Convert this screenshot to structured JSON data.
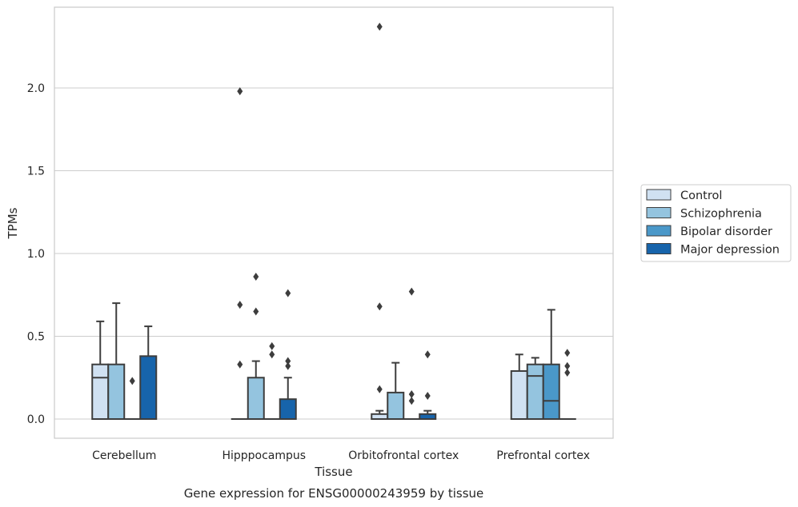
{
  "chart_data": {
    "type": "box",
    "title": "",
    "caption": "Gene expression for ENSG00000243959 by tissue",
    "xlabel": "Tissue",
    "ylabel": "TPMs",
    "ylim": [
      -0.115,
      2.48
    ],
    "yticks": [
      "0.0",
      "0.5",
      "1.0",
      "1.5",
      "2.0"
    ],
    "ytick_values": [
      0.0,
      0.5,
      1.0,
      1.5,
      2.0
    ],
    "grid": "horizontal",
    "legend_position": "right",
    "categories": [
      "Cerebellum",
      "Hipppocampus",
      "Orbitofrontal cortex",
      "Prefrontal cortex"
    ],
    "series": [
      {
        "name": "Control",
        "color": "#d0e1f2",
        "boxes": [
          {
            "q1": 0.0,
            "median": 0.25,
            "q3": 0.33,
            "whisker_low": 0.0,
            "whisker_high": 0.59,
            "outliers": []
          },
          {
            "q1": 0.0,
            "median": 0.0,
            "q3": 0.0,
            "whisker_low": 0.0,
            "whisker_high": 0.0,
            "outliers": [
              0.33,
              0.69,
              1.98
            ]
          },
          {
            "q1": 0.0,
            "median": 0.0,
            "q3": 0.03,
            "whisker_low": 0.0,
            "whisker_high": 0.05,
            "outliers": [
              0.18,
              0.68,
              2.37
            ]
          },
          {
            "q1": 0.0,
            "median": 0.0,
            "q3": 0.29,
            "whisker_low": 0.0,
            "whisker_high": 0.39,
            "outliers": []
          }
        ]
      },
      {
        "name": "Schizophrenia",
        "color": "#94c4df",
        "boxes": [
          {
            "q1": 0.0,
            "median": 0.0,
            "q3": 0.33,
            "whisker_low": 0.0,
            "whisker_high": 0.7,
            "outliers": []
          },
          {
            "q1": 0.0,
            "median": 0.0,
            "q3": 0.25,
            "whisker_low": 0.0,
            "whisker_high": 0.35,
            "outliers": [
              0.65,
              0.86
            ]
          },
          {
            "q1": 0.0,
            "median": 0.0,
            "q3": 0.16,
            "whisker_low": 0.0,
            "whisker_high": 0.34,
            "outliers": []
          },
          {
            "q1": 0.0,
            "median": 0.26,
            "q3": 0.33,
            "whisker_low": 0.0,
            "whisker_high": 0.37,
            "outliers": []
          }
        ]
      },
      {
        "name": "Bipolar disorder",
        "color": "#4a98c9",
        "boxes": [
          {
            "q1": 0.0,
            "median": 0.0,
            "q3": 0.0,
            "whisker_low": 0.0,
            "whisker_high": 0.0,
            "outliers": [
              0.23
            ]
          },
          {
            "q1": 0.0,
            "median": 0.0,
            "q3": 0.0,
            "whisker_low": 0.0,
            "whisker_high": 0.0,
            "outliers": [
              0.39,
              0.44
            ]
          },
          {
            "q1": 0.0,
            "median": 0.0,
            "q3": 0.0,
            "whisker_low": 0.0,
            "whisker_high": 0.0,
            "outliers": [
              0.11,
              0.15,
              0.77
            ]
          },
          {
            "q1": 0.0,
            "median": 0.11,
            "q3": 0.33,
            "whisker_low": 0.0,
            "whisker_high": 0.66,
            "outliers": []
          }
        ]
      },
      {
        "name": "Major depression",
        "color": "#1764ab",
        "boxes": [
          {
            "q1": 0.0,
            "median": 0.0,
            "q3": 0.38,
            "whisker_low": 0.0,
            "whisker_high": 0.56,
            "outliers": []
          },
          {
            "q1": 0.0,
            "median": 0.0,
            "q3": 0.12,
            "whisker_low": 0.0,
            "whisker_high": 0.25,
            "outliers": [
              0.32,
              0.35,
              0.76
            ]
          },
          {
            "q1": 0.0,
            "median": 0.0,
            "q3": 0.03,
            "whisker_low": 0.0,
            "whisker_high": 0.05,
            "outliers": [
              0.14,
              0.39
            ]
          },
          {
            "q1": 0.0,
            "median": 0.0,
            "q3": 0.0,
            "whisker_low": 0.0,
            "whisker_high": 0.0,
            "outliers": [
              0.28,
              0.32,
              0.4
            ]
          }
        ]
      }
    ]
  }
}
